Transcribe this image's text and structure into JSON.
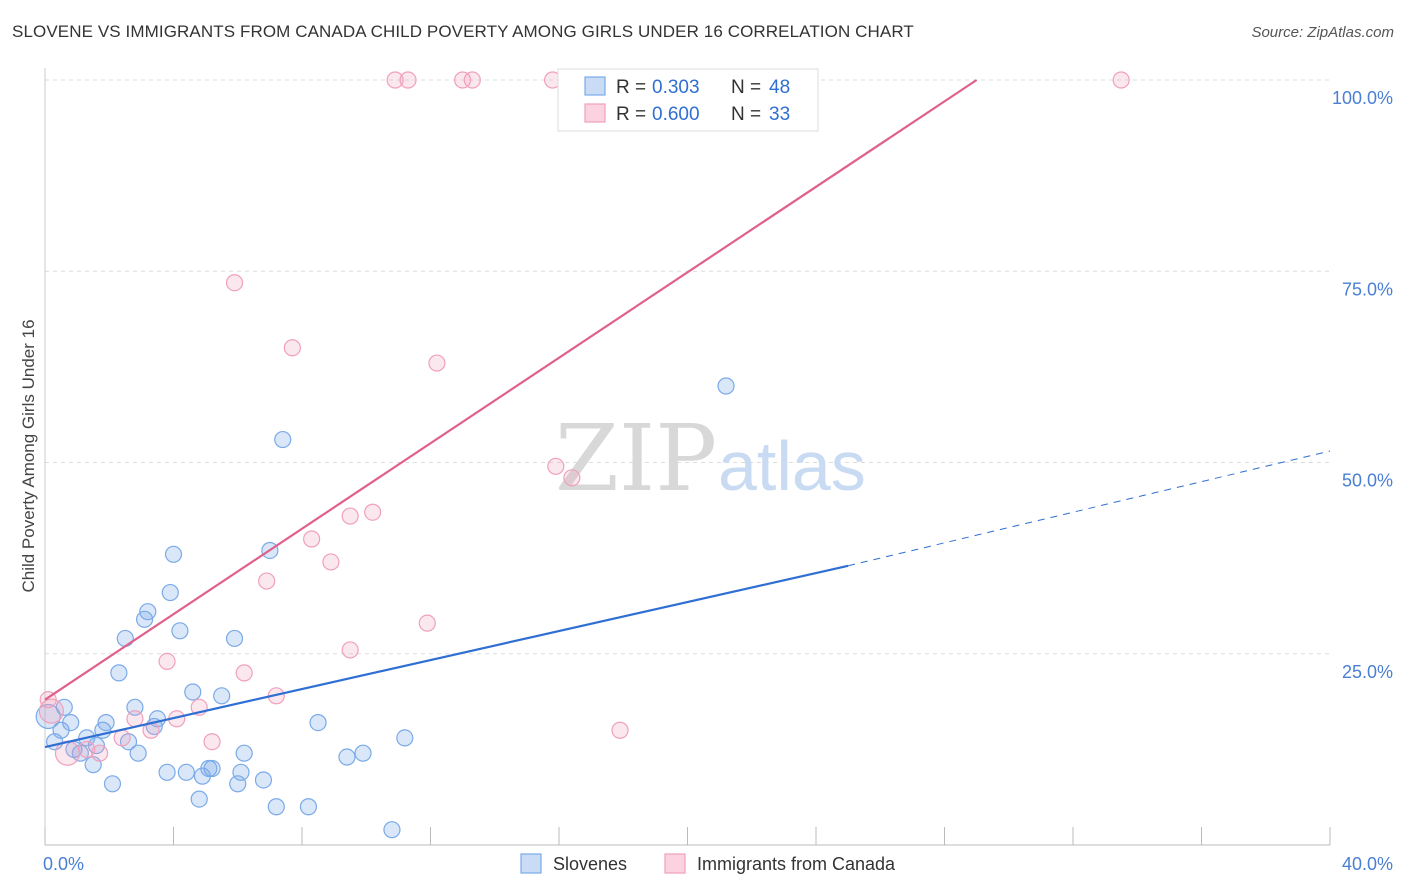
{
  "title": "SLOVENE VS IMMIGRANTS FROM CANADA CHILD POVERTY AMONG GIRLS UNDER 16 CORRELATION CHART",
  "source": "Source: ZipAtlas.com",
  "watermark": {
    "zip": "ZIP",
    "atlas": "atlas"
  },
  "colors": {
    "blue": "#7aaae8",
    "pink": "#f0a0bc",
    "blue_line": "#2f6fd3",
    "pink_line": "#e0608c"
  },
  "stats": [
    {
      "r_label": "R =",
      "r_value": "0.303",
      "n_label": "N =",
      "n_value": "48"
    },
    {
      "r_label": "R =",
      "r_value": "0.600",
      "n_label": "N =",
      "n_value": "33"
    }
  ],
  "chart_data": {
    "type": "scatter",
    "title": "SLOVENE VS IMMIGRANTS FROM CANADA CHILD POVERTY AMONG GIRLS UNDER 16 CORRELATION CHART",
    "xlabel": "",
    "ylabel": "Child Poverty Among Girls Under 16",
    "xlim": [
      0,
      40
    ],
    "ylim": [
      0,
      100
    ],
    "x_tick_labels": [
      "0.0%",
      "40.0%"
    ],
    "y_tick_values": [
      25,
      50,
      75,
      100
    ],
    "y_tick_labels": [
      "25.0%",
      "50.0%",
      "75.0%",
      "100.0%"
    ],
    "legend": [
      "Slovenes",
      "Immigrants from Canada"
    ],
    "series": [
      {
        "name": "Slovenes",
        "color": "#7aaae8",
        "r": 0.303,
        "n": 48,
        "trend": {
          "x0": 0,
          "y0": 12.8,
          "x1": 25,
          "y1": 36.5,
          "dashed_to_x": 40,
          "dashed_to_y": 51.5
        },
        "points": [
          [
            0.1,
            16.8
          ],
          [
            0.3,
            13.5
          ],
          [
            0.5,
            15.0
          ],
          [
            0.6,
            18.0
          ],
          [
            0.8,
            16.0
          ],
          [
            0.9,
            12.5
          ],
          [
            1.1,
            12.0
          ],
          [
            1.3,
            14.0
          ],
          [
            1.5,
            10.5
          ],
          [
            1.6,
            13.0
          ],
          [
            1.8,
            15.0
          ],
          [
            1.9,
            16.0
          ],
          [
            2.1,
            8.0
          ],
          [
            2.3,
            22.5
          ],
          [
            2.5,
            27.0
          ],
          [
            2.6,
            13.5
          ],
          [
            2.8,
            18.0
          ],
          [
            2.9,
            12.0
          ],
          [
            3.1,
            29.5
          ],
          [
            3.2,
            30.5
          ],
          [
            3.4,
            15.5
          ],
          [
            3.5,
            16.5
          ],
          [
            3.8,
            9.5
          ],
          [
            3.9,
            33.0
          ],
          [
            4.0,
            38.0
          ],
          [
            4.2,
            28.0
          ],
          [
            4.4,
            9.5
          ],
          [
            4.6,
            20.0
          ],
          [
            4.8,
            6.0
          ],
          [
            4.9,
            9.0
          ],
          [
            5.1,
            10.0
          ],
          [
            5.2,
            10.0
          ],
          [
            5.5,
            19.5
          ],
          [
            5.9,
            27.0
          ],
          [
            6.0,
            8.0
          ],
          [
            6.1,
            9.5
          ],
          [
            6.2,
            12.0
          ],
          [
            6.8,
            8.5
          ],
          [
            7.0,
            38.5
          ],
          [
            7.2,
            5.0
          ],
          [
            7.4,
            53.0
          ],
          [
            8.2,
            5.0
          ],
          [
            8.5,
            16.0
          ],
          [
            9.4,
            11.5
          ],
          [
            9.9,
            12.0
          ],
          [
            10.8,
            2.0
          ],
          [
            11.2,
            14.0
          ],
          [
            21.2,
            60.0
          ]
        ]
      },
      {
        "name": "Immigrants from Canada",
        "color": "#f0a0bc",
        "r": 0.6,
        "n": 33,
        "trend": {
          "x0": 0,
          "y0": 19.0,
          "x1": 29,
          "y1": 100.0
        },
        "points": [
          [
            0.2,
            17.5
          ],
          [
            0.7,
            12.0
          ],
          [
            1.3,
            12.5
          ],
          [
            1.7,
            12.0
          ],
          [
            2.4,
            14.0
          ],
          [
            2.8,
            16.5
          ],
          [
            3.3,
            15.0
          ],
          [
            3.8,
            24.0
          ],
          [
            4.1,
            16.5
          ],
          [
            4.8,
            18.0
          ],
          [
            5.2,
            13.5
          ],
          [
            5.9,
            73.5
          ],
          [
            6.2,
            22.5
          ],
          [
            6.9,
            34.5
          ],
          [
            7.2,
            19.5
          ],
          [
            7.7,
            65.0
          ],
          [
            8.3,
            40.0
          ],
          [
            8.9,
            37.0
          ],
          [
            9.5,
            43.0
          ],
          [
            10.2,
            43.5
          ],
          [
            9.5,
            25.5
          ],
          [
            10.9,
            100.0
          ],
          [
            11.3,
            100.0
          ],
          [
            12.2,
            63.0
          ],
          [
            11.9,
            29.0
          ],
          [
            13.0,
            100.0
          ],
          [
            13.3,
            100.0
          ],
          [
            15.8,
            100.0
          ],
          [
            15.9,
            49.5
          ],
          [
            16.4,
            48.0
          ],
          [
            17.9,
            15.0
          ],
          [
            33.5,
            100.0
          ],
          [
            0.1,
            19.0
          ]
        ]
      }
    ]
  }
}
